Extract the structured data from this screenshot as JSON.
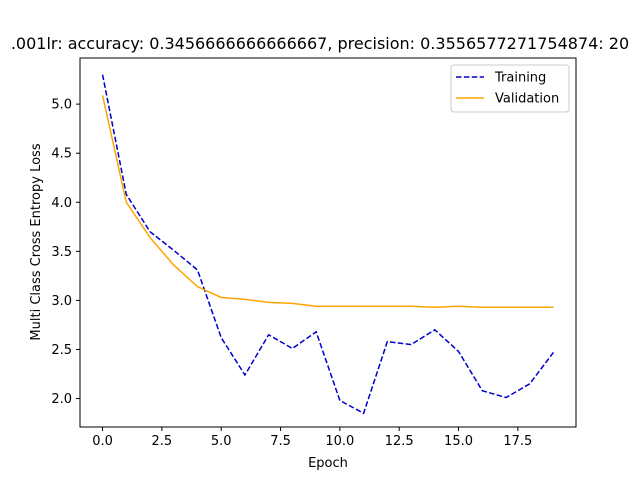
{
  "chart_data": {
    "type": "line",
    "title": ".001lr: accuracy: 0.3456666666666667, precision: 0.3556577271754874: 20",
    "xlabel": "Epoch",
    "ylabel": "Multi Class Cross Entropy Loss",
    "xlim": [
      -0.95,
      19.95
    ],
    "ylim": [
      1.71,
      5.47
    ],
    "xticks": [
      0.0,
      2.5,
      5.0,
      7.5,
      10.0,
      12.5,
      15.0,
      17.5
    ],
    "xtick_labels": [
      "0.0",
      "2.5",
      "5.0",
      "7.5",
      "10.0",
      "12.5",
      "15.0",
      "17.5"
    ],
    "yticks": [
      2.0,
      2.5,
      3.0,
      3.5,
      4.0,
      4.5,
      5.0
    ],
    "ytick_labels": [
      "2.0",
      "2.5",
      "3.0",
      "3.5",
      "4.0",
      "4.5",
      "5.0"
    ],
    "grid": false,
    "legend_position": "top-right",
    "x": [
      0,
      1,
      2,
      3,
      4,
      5,
      6,
      7,
      8,
      9,
      10,
      11,
      12,
      13,
      14,
      15,
      16,
      17,
      18,
      19
    ],
    "series": [
      {
        "name": "Training",
        "color": "#0000cc",
        "style": "dashed",
        "values": [
          5.3,
          4.08,
          3.7,
          3.51,
          3.31,
          2.62,
          2.24,
          2.65,
          2.51,
          2.68,
          1.98,
          1.85,
          2.58,
          2.55,
          2.7,
          2.48,
          2.08,
          2.01,
          2.15,
          2.47
        ]
      },
      {
        "name": "Validation",
        "color": "#ffa500",
        "style": "solid",
        "values": [
          5.09,
          4.0,
          3.64,
          3.36,
          3.14,
          3.03,
          3.01,
          2.98,
          2.97,
          2.94,
          2.94,
          2.94,
          2.94,
          2.94,
          2.93,
          2.94,
          2.93,
          2.93,
          2.93,
          2.93
        ]
      }
    ]
  }
}
